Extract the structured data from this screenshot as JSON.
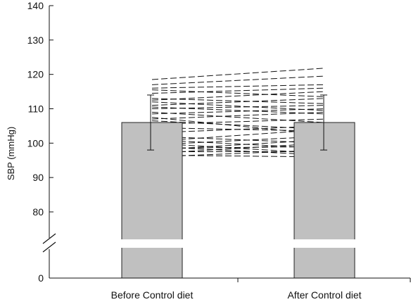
{
  "chart_data": {
    "type": "bar",
    "ylabel": "SBP (mmHg)",
    "xlabel": "",
    "categories": [
      "Before Control diet",
      "After Control diet"
    ],
    "values": [
      106,
      106
    ],
    "error_bars": [
      {
        "low": 98,
        "high": 114
      },
      {
        "low": 98,
        "high": 114
      }
    ],
    "yticks": [
      0,
      80,
      90,
      100,
      110,
      120,
      130,
      140
    ],
    "ylim_upper": [
      70,
      140
    ],
    "ylim_lower": [
      0,
      10
    ],
    "axis_break": true,
    "grid": false,
    "bar_color": "#c0c0c0",
    "line_style": "dashed",
    "paired_lines": [
      [
        118.5,
        121.8
      ],
      [
        117,
        119.5
      ],
      [
        116,
        117
      ],
      [
        115.5,
        113.5
      ],
      [
        114.5,
        116
      ],
      [
        113,
        111.5
      ],
      [
        112.5,
        115
      ],
      [
        112,
        109.5
      ],
      [
        111,
        113
      ],
      [
        110.5,
        108.5
      ],
      [
        110,
        111
      ],
      [
        109,
        106
      ],
      [
        108.5,
        110
      ],
      [
        107.5,
        102.5
      ],
      [
        107,
        109
      ],
      [
        106.5,
        104
      ],
      [
        105.5,
        107
      ],
      [
        104.5,
        103.5
      ],
      [
        103,
        105
      ],
      [
        102,
        100
      ],
      [
        101,
        98.5
      ],
      [
        100.5,
        104
      ],
      [
        100,
        97
      ],
      [
        99.5,
        102
      ],
      [
        99,
        96.5
      ],
      [
        98.5,
        99
      ],
      [
        98,
        101
      ],
      [
        97.5,
        97.5
      ],
      [
        97,
        100
      ],
      [
        96.5,
        96
      ],
      [
        96,
        98
      ]
    ]
  }
}
